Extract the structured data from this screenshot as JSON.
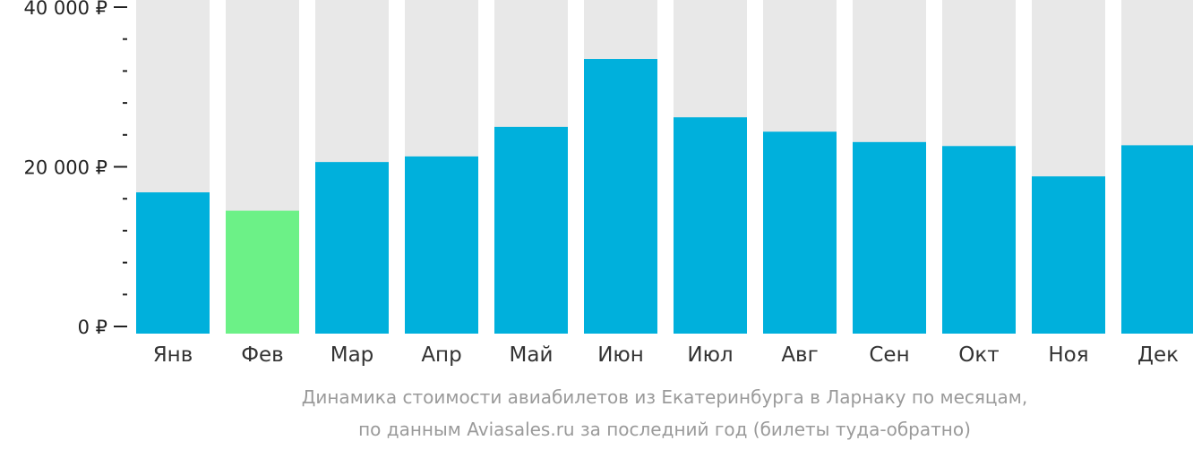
{
  "chart_data": {
    "type": "bar",
    "categories": [
      "Янв",
      "Фев",
      "Мар",
      "Апр",
      "Май",
      "Июн",
      "Июл",
      "Авг",
      "Сен",
      "Окт",
      "Ноя",
      "Дек"
    ],
    "values": [
      16800,
      14500,
      20600,
      21300,
      25000,
      33500,
      26200,
      24400,
      23100,
      22600,
      18800,
      22700
    ],
    "ylim": [
      0,
      40000
    ],
    "y_ticks": [
      "0 ₽",
      "20 000 ₽",
      "40 000 ₽"
    ],
    "highlight_index": 1,
    "grid": false,
    "colors": {
      "bar": "#00b0dc",
      "highlight": "#6cf187",
      "background_bar": "#e8e8e8",
      "axis": "#222222",
      "caption": "#9a9a9a"
    }
  },
  "caption": {
    "line1": "Динамика стоимости авиабилетов из Екатеринбурга в Ларнаку по месяцам,",
    "line2": "по данным Aviasales.ru за последний год (билеты туда-обратно)"
  }
}
